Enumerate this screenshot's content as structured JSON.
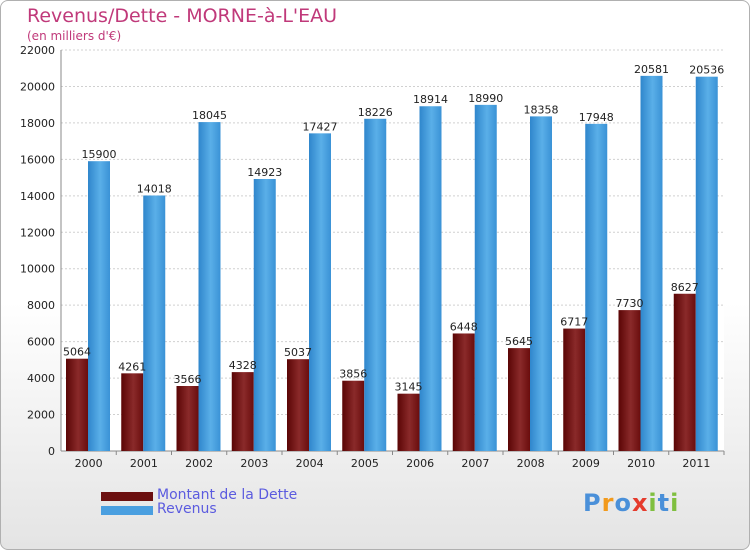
{
  "chart": {
    "title": "Revenus/Dette - MORNE-à-L'EAU",
    "subtitle": "(en milliers d'€)"
  },
  "chart_data": {
    "type": "bar",
    "title": "Revenus/Dette - MORNE-à-L'EAU",
    "subtitle": "(en milliers d'€)",
    "categories": [
      "2000",
      "2001",
      "2002",
      "2003",
      "2004",
      "2005",
      "2006",
      "2007",
      "2008",
      "2009",
      "2010",
      "2011"
    ],
    "series": [
      {
        "name": "Montant de la Dette",
        "color": "#7a1a1a",
        "values": [
          5064,
          4261,
          3566,
          4328,
          5037,
          3856,
          3145,
          6448,
          5645,
          6717,
          7730,
          8627
        ]
      },
      {
        "name": "Revenus",
        "color": "#4a9fe0",
        "values": [
          15900,
          14018,
          18045,
          14923,
          17427,
          18226,
          18914,
          18990,
          18358,
          17948,
          20581,
          20536
        ]
      }
    ],
    "ylim": [
      0,
      22000
    ],
    "yticks": [
      0,
      2000,
      4000,
      6000,
      8000,
      10000,
      12000,
      14000,
      16000,
      18000,
      20000,
      22000
    ],
    "grid": true,
    "legend": "bottom-left"
  },
  "legend": {
    "items": [
      {
        "label": "Montant de la Dette",
        "color": "#6b0f0f"
      },
      {
        "label": "Revenus",
        "color": "#4a9fe0"
      }
    ]
  },
  "logo": {
    "letters": [
      "P",
      "r",
      "o",
      "x",
      "i",
      "t",
      "i"
    ],
    "colors": [
      "#4a90d9",
      "#f29a1c",
      "#4a90d9",
      "#e53b2c",
      "#7fbf3f",
      "#4a90d9",
      "#7fbf3f"
    ]
  }
}
